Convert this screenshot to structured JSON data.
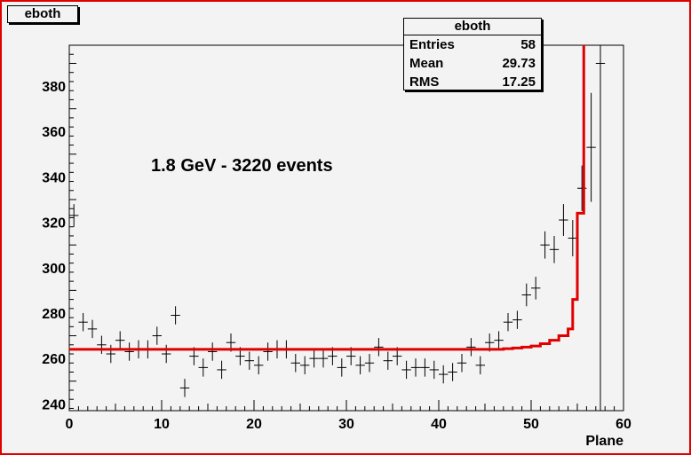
{
  "histogram": {
    "name": "eboth"
  },
  "stats": {
    "title": "eboth",
    "rows": [
      {
        "label": "Entries",
        "value": "58"
      },
      {
        "label": "Mean",
        "value": "29.73"
      },
      {
        "label": "RMS",
        "value": "17.25"
      }
    ]
  },
  "annotation": "1.8 GeV - 3220 events",
  "colors": {
    "frame": "#e00000",
    "fit": "#e00000",
    "points": "#000000",
    "background": "#f3f3f3"
  },
  "chart_data": {
    "type": "scatter",
    "title": "",
    "xlabel": "Plane",
    "ylabel": "",
    "xlim": [
      0,
      60
    ],
    "ylim": [
      237,
      398
    ],
    "xticks": [
      0,
      10,
      20,
      30,
      40,
      50,
      60
    ],
    "yticks": [
      240,
      260,
      280,
      300,
      320,
      340,
      360,
      380
    ],
    "grid": false,
    "series": [
      {
        "kind": "points-with-errors",
        "x": [
          0.5,
          1.5,
          2.5,
          3.5,
          4.5,
          5.5,
          6.5,
          7.5,
          8.5,
          9.5,
          10.5,
          11.5,
          12.5,
          13.5,
          14.5,
          15.5,
          16.5,
          17.5,
          18.5,
          19.5,
          20.5,
          21.5,
          22.5,
          23.5,
          24.5,
          25.5,
          26.5,
          27.5,
          28.5,
          29.5,
          30.5,
          31.5,
          32.5,
          33.5,
          34.5,
          35.5,
          36.5,
          37.5,
          38.5,
          39.5,
          40.5,
          41.5,
          42.5,
          43.5,
          44.5,
          45.5,
          46.5,
          47.5,
          48.5,
          49.5,
          50.5,
          51.5,
          52.5,
          53.5,
          54.5,
          55.5,
          56.5,
          57.5
        ],
        "y": [
          323,
          276,
          273,
          266,
          262,
          268,
          263,
          264,
          264,
          270,
          262,
          279,
          247,
          261,
          256,
          263,
          255,
          267,
          261,
          259,
          257,
          263,
          264,
          264,
          258,
          257,
          260,
          260,
          261,
          256,
          261,
          257,
          258,
          265,
          259,
          261,
          255,
          256,
          256,
          255,
          253,
          254,
          258,
          265,
          257,
          267,
          268,
          276,
          277,
          288,
          291,
          310,
          308,
          321,
          313,
          335,
          353,
          390
        ],
        "yerr": [
          5,
          4,
          4,
          4,
          4,
          4,
          4,
          4,
          4,
          4,
          4,
          4,
          4,
          4,
          4,
          4,
          4,
          4,
          4,
          4,
          4,
          4,
          4,
          4,
          4,
          4,
          4,
          4,
          4,
          4,
          4,
          4,
          4,
          4,
          4,
          4,
          4,
          4,
          4,
          4,
          4,
          4,
          4,
          4,
          4,
          4,
          4,
          4,
          4,
          5,
          5,
          6,
          6,
          7,
          8,
          10,
          24,
          60
        ]
      },
      {
        "kind": "step",
        "x": [
          0,
          43,
          45,
          47,
          48,
          49,
          50,
          51,
          52,
          53,
          54,
          54.5,
          55,
          55.7
        ],
        "y": [
          264,
          264,
          264,
          264.3,
          264.6,
          265,
          265.5,
          266.5,
          268,
          270,
          273,
          286,
          324,
          398
        ]
      }
    ]
  }
}
